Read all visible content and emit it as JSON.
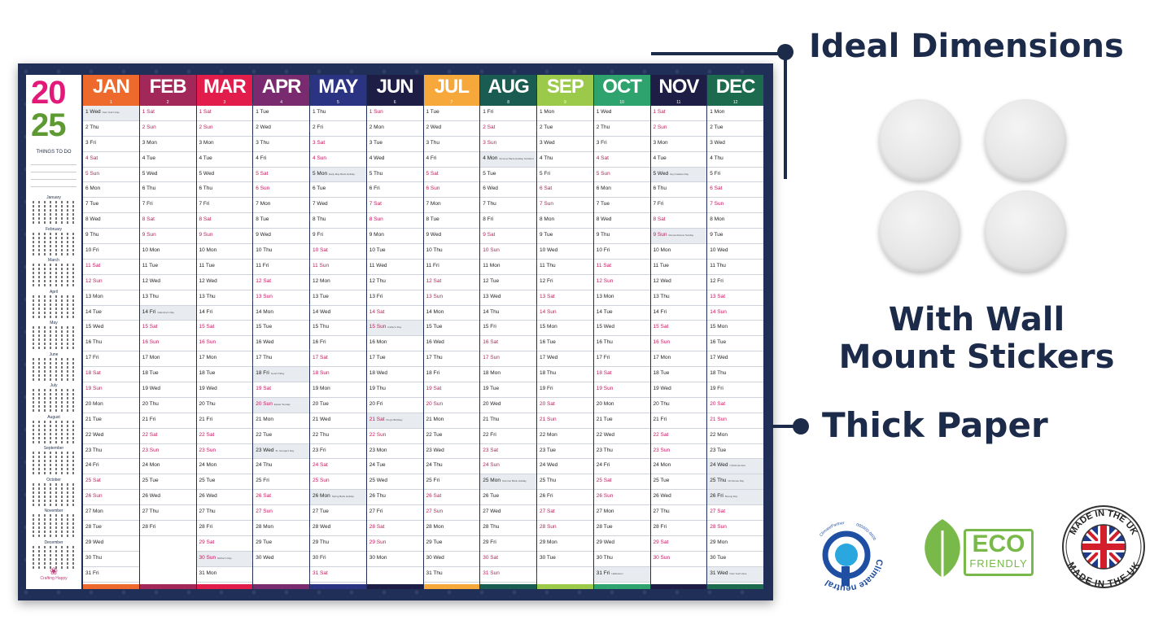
{
  "features": {
    "ideal_dimensions": "Ideal Dimensions",
    "wall_mount_line1": "With Wall",
    "wall_mount_line2": "Mount Stickers",
    "thick_paper": "Thick Paper"
  },
  "badges": {
    "climate_text": "Climate neutral",
    "climate_partner": "ClimatePartner",
    "climate_id": "000000-0000",
    "eco_big": "ECO",
    "eco_small": "FRIENDLY",
    "uk_top": "MADE IN THE UK",
    "uk_bottom": "MADE IN THE UK"
  },
  "planner": {
    "year_top": "20",
    "year_bottom": "25",
    "things_to_do": "THINGS TO DO",
    "mini_months": [
      "January",
      "February",
      "March",
      "April",
      "May",
      "June",
      "July",
      "August",
      "September",
      "October",
      "November",
      "December"
    ],
    "brand": "Crafting Happy"
  },
  "months": [
    {
      "name": "JAN",
      "num": "1",
      "color": "#ee6a2c",
      "days": [
        "1 Wed",
        "2 Thu",
        "3 Fri",
        "4 Sat",
        "5 Sun",
        "6 Mon",
        "7 Tue",
        "8 Wed",
        "9 Thu",
        "10 Fri",
        "11 Sat",
        "12 Sun",
        "13 Mon",
        "14 Tue",
        "15 Wed",
        "16 Thu",
        "17 Fri",
        "18 Sat",
        "19 Sun",
        "20 Mon",
        "21 Tue",
        "22 Wed",
        "23 Thu",
        "24 Fri",
        "25 Sat",
        "26 Sun",
        "27 Mon",
        "28 Tue",
        "29 Wed",
        "30 Thu",
        "31 Fri"
      ],
      "events": {
        "1": "New Year's Day"
      }
    },
    {
      "name": "FEB",
      "num": "2",
      "color": "#a3285a",
      "days": [
        "1 Sat",
        "2 Sun",
        "3 Mon",
        "4 Tue",
        "5 Wed",
        "6 Thu",
        "7 Fri",
        "8 Sat",
        "9 Sun",
        "10 Mon",
        "11 Tue",
        "12 Wed",
        "13 Thu",
        "14 Fri",
        "15 Sat",
        "16 Sun",
        "17 Mon",
        "18 Tue",
        "19 Wed",
        "20 Thu",
        "21 Fri",
        "22 Sat",
        "23 Sun",
        "24 Mon",
        "25 Tue",
        "26 Wed",
        "27 Thu",
        "28 Fri"
      ],
      "events": {
        "14": "Valentine's Day"
      }
    },
    {
      "name": "MAR",
      "num": "3",
      "color": "#e21d4b",
      "days": [
        "1 Sat",
        "2 Sun",
        "3 Mon",
        "4 Tue",
        "5 Wed",
        "6 Thu",
        "7 Fri",
        "8 Sat",
        "9 Sun",
        "10 Mon",
        "11 Tue",
        "12 Wed",
        "13 Thu",
        "14 Fri",
        "15 Sat",
        "16 Sun",
        "17 Mon",
        "18 Tue",
        "19 Wed",
        "20 Thu",
        "21 Fri",
        "22 Sat",
        "23 Sun",
        "24 Mon",
        "25 Tue",
        "26 Wed",
        "27 Thu",
        "28 Fri",
        "29 Sat",
        "30 Sun",
        "31 Mon"
      ],
      "events": {
        "30": "Mother's Day"
      }
    },
    {
      "name": "APR",
      "num": "4",
      "color": "#7a2a6e",
      "days": [
        "1 Tue",
        "2 Wed",
        "3 Thu",
        "4 Fri",
        "5 Sat",
        "6 Sun",
        "7 Mon",
        "8 Tue",
        "9 Wed",
        "10 Thu",
        "11 Fri",
        "12 Sat",
        "13 Sun",
        "14 Mon",
        "15 Tue",
        "16 Wed",
        "17 Thu",
        "18 Fri",
        "19 Sat",
        "20 Sun",
        "21 Mon",
        "22 Tue",
        "23 Wed",
        "24 Thu",
        "25 Fri",
        "26 Sat",
        "27 Sun",
        "28 Mon",
        "29 Tue",
        "30 Wed"
      ],
      "events": {
        "18": "Good Friday",
        "20": "Easter Sunday",
        "23": "St. George's Day"
      }
    },
    {
      "name": "MAY",
      "num": "5",
      "color": "#2b3383",
      "days": [
        "1 Thu",
        "2 Fri",
        "3 Sat",
        "4 Sun",
        "5 Mon",
        "6 Tue",
        "7 Wed",
        "8 Thu",
        "9 Fri",
        "10 Sat",
        "11 Sun",
        "12 Mon",
        "13 Tue",
        "14 Wed",
        "15 Thu",
        "16 Fri",
        "17 Sat",
        "18 Sun",
        "19 Mon",
        "20 Tue",
        "21 Wed",
        "22 Thu",
        "23 Fri",
        "24 Sat",
        "25 Sun",
        "26 Mon",
        "27 Tue",
        "28 Wed",
        "29 Thu",
        "30 Fri",
        "31 Sat"
      ],
      "events": {
        "5": "Early May Bank Holiday",
        "26": "Spring Bank Holiday"
      }
    },
    {
      "name": "JUN",
      "num": "6",
      "color": "#1e1d45",
      "days": [
        "1 Sun",
        "2 Mon",
        "3 Tue",
        "4 Wed",
        "5 Thu",
        "6 Fri",
        "7 Sat",
        "8 Sun",
        "9 Mon",
        "10 Tue",
        "11 Wed",
        "12 Thu",
        "13 Fri",
        "14 Sat",
        "15 Sun",
        "16 Mon",
        "17 Tue",
        "18 Wed",
        "19 Thu",
        "20 Fri",
        "21 Sat",
        "22 Sun",
        "23 Mon",
        "24 Tue",
        "25 Wed",
        "26 Thu",
        "27 Fri",
        "28 Sat",
        "29 Sun",
        "30 Mon"
      ],
      "events": {
        "15": "Father's Day",
        "21": "King's Birthday"
      }
    },
    {
      "name": "JUL",
      "num": "7",
      "color": "#f6a93a",
      "days": [
        "1 Tue",
        "2 Wed",
        "3 Thu",
        "4 Fri",
        "5 Sat",
        "6 Sun",
        "7 Mon",
        "8 Tue",
        "9 Wed",
        "10 Thu",
        "11 Fri",
        "12 Sat",
        "13 Sun",
        "14 Mon",
        "15 Tue",
        "16 Wed",
        "17 Thu",
        "18 Fri",
        "19 Sat",
        "20 Sun",
        "21 Mon",
        "22 Tue",
        "23 Wed",
        "24 Thu",
        "25 Fri",
        "26 Sat",
        "27 Sun",
        "28 Mon",
        "29 Tue",
        "30 Wed",
        "31 Thu"
      ],
      "events": {}
    },
    {
      "name": "AUG",
      "num": "8",
      "color": "#1a5c52",
      "days": [
        "1 Fri",
        "2 Sat",
        "3 Sun",
        "4 Mon",
        "5 Tue",
        "6 Wed",
        "7 Thu",
        "8 Fri",
        "9 Sat",
        "10 Sun",
        "11 Mon",
        "12 Tue",
        "13 Wed",
        "14 Thu",
        "15 Fri",
        "16 Sat",
        "17 Sun",
        "18 Mon",
        "19 Tue",
        "20 Wed",
        "21 Thu",
        "22 Fri",
        "23 Sat",
        "24 Sun",
        "25 Mon",
        "26 Tue",
        "27 Wed",
        "28 Thu",
        "29 Fri",
        "30 Sat",
        "31 Sun"
      ],
      "events": {
        "4": "Summer Bank Holiday Scotland",
        "25": "Summer Bank Holiday"
      }
    },
    {
      "name": "SEP",
      "num": "9",
      "color": "#9bc94a",
      "days": [
        "1 Mon",
        "2 Tue",
        "3 Wed",
        "4 Thu",
        "5 Fri",
        "6 Sat",
        "7 Sun",
        "8 Mon",
        "9 Tue",
        "10 Wed",
        "11 Thu",
        "12 Fri",
        "13 Sat",
        "14 Sun",
        "15 Mon",
        "16 Tue",
        "17 Wed",
        "18 Thu",
        "19 Fri",
        "20 Sat",
        "21 Sun",
        "22 Mon",
        "23 Tue",
        "24 Wed",
        "25 Thu",
        "26 Fri",
        "27 Sat",
        "28 Sun",
        "29 Mon",
        "30 Tue"
      ],
      "events": {}
    },
    {
      "name": "OCT",
      "num": "10",
      "color": "#2fa36e",
      "days": [
        "1 Wed",
        "2 Thu",
        "3 Fri",
        "4 Sat",
        "5 Sun",
        "6 Mon",
        "7 Tue",
        "8 Wed",
        "9 Thu",
        "10 Fri",
        "11 Sat",
        "12 Sun",
        "13 Mon",
        "14 Tue",
        "15 Wed",
        "16 Thu",
        "17 Fri",
        "18 Sat",
        "19 Sun",
        "20 Mon",
        "21 Tue",
        "22 Wed",
        "23 Thu",
        "24 Fri",
        "25 Sat",
        "26 Sun",
        "27 Mon",
        "28 Tue",
        "29 Wed",
        "30 Thu",
        "31 Fri"
      ],
      "events": {
        "31": "Halloween"
      }
    },
    {
      "name": "NOV",
      "num": "11",
      "color": "#1e1d45",
      "days": [
        "1 Sat",
        "2 Sun",
        "3 Mon",
        "4 Tue",
        "5 Wed",
        "6 Thu",
        "7 Fri",
        "8 Sat",
        "9 Sun",
        "10 Mon",
        "11 Tue",
        "12 Wed",
        "13 Thu",
        "14 Fri",
        "15 Sat",
        "16 Sun",
        "17 Mon",
        "18 Tue",
        "19 Wed",
        "20 Thu",
        "21 Fri",
        "22 Sat",
        "23 Sun",
        "24 Mon",
        "25 Tue",
        "26 Wed",
        "27 Thu",
        "28 Fri",
        "29 Sat",
        "30 Sun"
      ],
      "events": {
        "5": "Guy Fawkes Day",
        "9": "Remembrance Sunday"
      }
    },
    {
      "name": "DEC",
      "num": "12",
      "color": "#1c6b4f",
      "days": [
        "1 Mon",
        "2 Tue",
        "3 Wed",
        "4 Thu",
        "5 Fri",
        "6 Sat",
        "7 Sun",
        "8 Mon",
        "9 Tue",
        "10 Wed",
        "11 Thu",
        "12 Fri",
        "13 Sat",
        "14 Sun",
        "15 Mon",
        "16 Tue",
        "17 Wed",
        "18 Thu",
        "19 Fri",
        "20 Sat",
        "21 Sun",
        "22 Mon",
        "23 Tue",
        "24 Wed",
        "25 Thu",
        "26 Fri",
        "27 Sat",
        "28 Sun",
        "29 Mon",
        "30 Tue",
        "31 Wed"
      ],
      "events": {
        "24": "Christmas Eve",
        "25": "Christmas Day",
        "26": "Boxing Day",
        "31": "New Year's Eve"
      }
    }
  ]
}
